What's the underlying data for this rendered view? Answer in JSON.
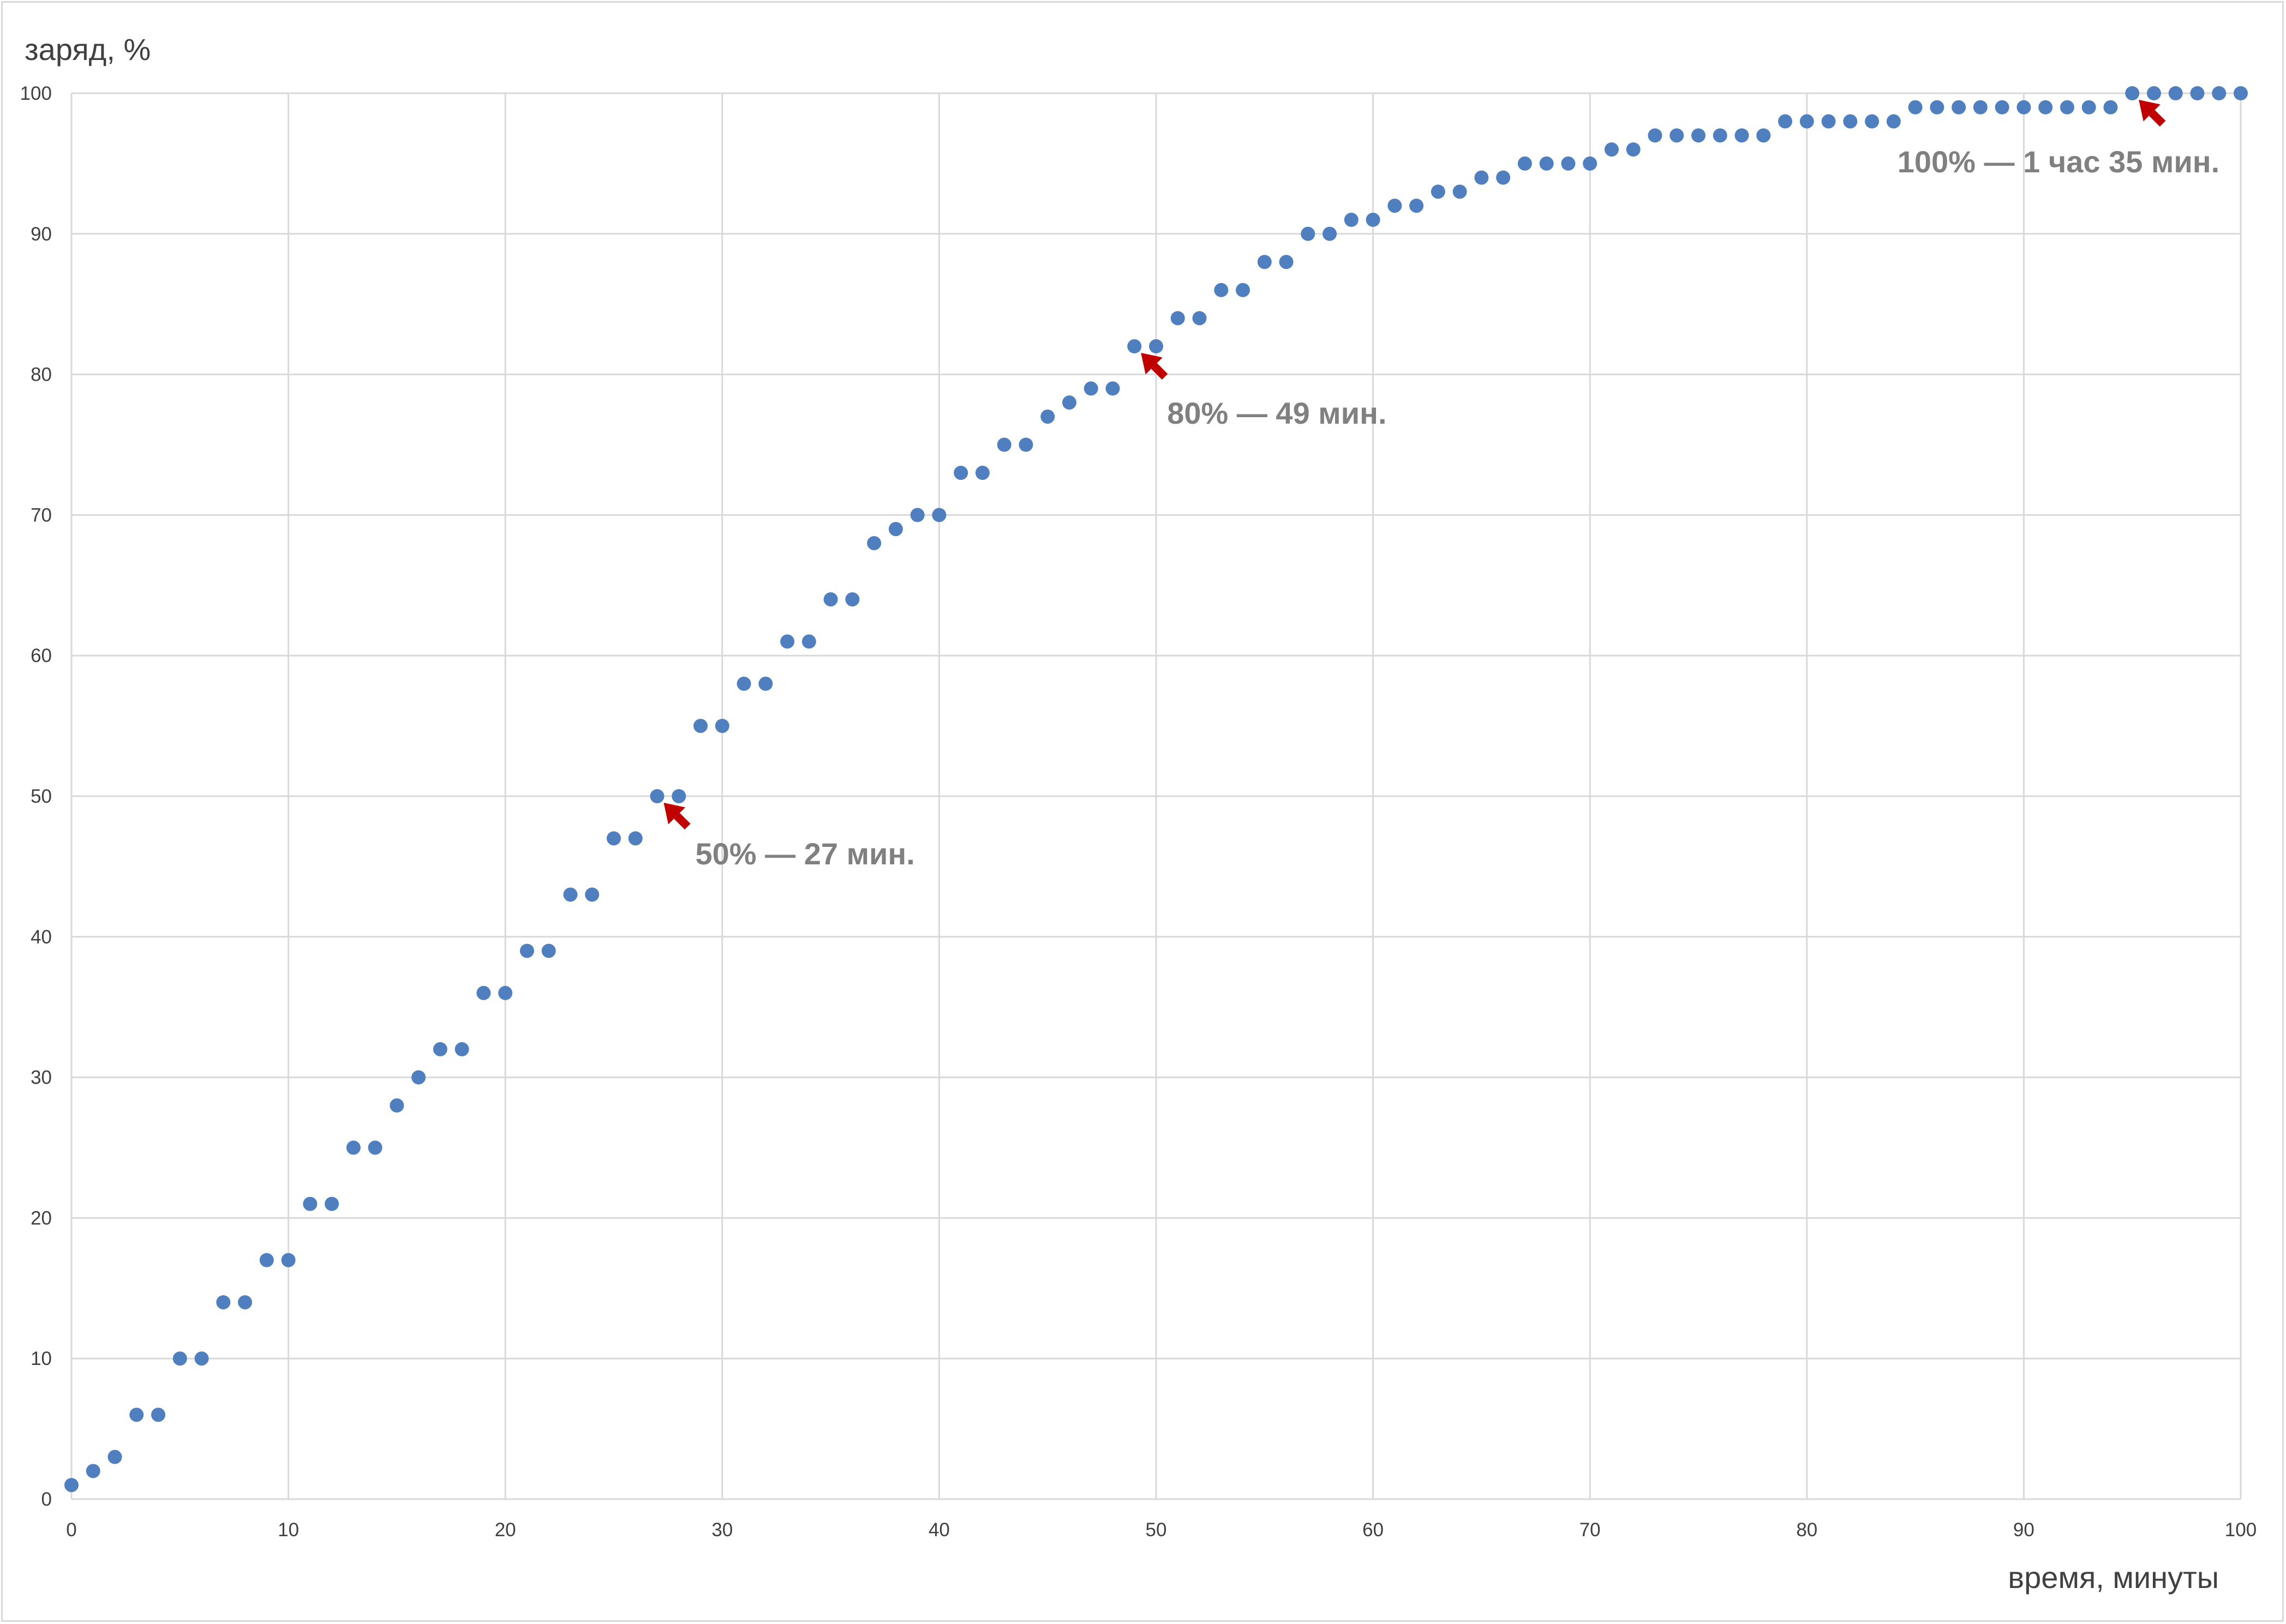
{
  "chart_data": {
    "type": "scatter",
    "xlabel": "время, минуты",
    "ylabel": "заряд, %",
    "xlim": [
      0,
      100
    ],
    "ylim": [
      0,
      100
    ],
    "x_ticks": [
      "0",
      "10",
      "20",
      "30",
      "40",
      "50",
      "60",
      "70",
      "80",
      "90",
      "100"
    ],
    "y_ticks": [
      "0",
      "10",
      "20",
      "30",
      "40",
      "50",
      "60",
      "70",
      "80",
      "90",
      "100"
    ],
    "grid": true,
    "legend": "none",
    "colors": {
      "marker": "#4f7fbf",
      "arrow": "#c00000",
      "annotation": "#808080",
      "grid": "#d9d9d9"
    },
    "series": [
      {
        "x": [
          0,
          1,
          2,
          3,
          4,
          5,
          6,
          7,
          8,
          9,
          10,
          11,
          12,
          13,
          14,
          15,
          16,
          17,
          18,
          19,
          20,
          21,
          22,
          23,
          24,
          25,
          26,
          27,
          28,
          29,
          30,
          31,
          32,
          33,
          34,
          35,
          36,
          37,
          38,
          39,
          40,
          41,
          42,
          43,
          44,
          45,
          46,
          47,
          48,
          49,
          50,
          51,
          52,
          53,
          54,
          55,
          56,
          57,
          58,
          59,
          60,
          61,
          62,
          63,
          64,
          65,
          66,
          67,
          68,
          69,
          70,
          71,
          72,
          73,
          74,
          75,
          76,
          77,
          78,
          79,
          80,
          81,
          82,
          83,
          84,
          85,
          86,
          87,
          88,
          89,
          90,
          91,
          92,
          93,
          94,
          95,
          96,
          97,
          98,
          99,
          100
        ],
        "y": [
          1,
          2,
          3,
          6,
          6,
          10,
          10,
          14,
          14,
          17,
          17,
          21,
          21,
          25,
          25,
          28,
          30,
          32,
          32,
          36,
          36,
          39,
          39,
          43,
          43,
          47,
          47,
          50,
          50,
          55,
          55,
          58,
          58,
          61,
          61,
          64,
          64,
          68,
          69,
          70,
          70,
          73,
          73,
          75,
          75,
          77,
          78,
          79,
          79,
          82,
          82,
          84,
          84,
          86,
          86,
          88,
          88,
          90,
          90,
          91,
          91,
          92,
          92,
          93,
          93,
          94,
          94,
          95,
          95,
          95,
          95,
          96,
          96,
          97,
          97,
          97,
          97,
          97,
          97,
          98,
          98,
          98,
          98,
          98,
          98,
          99,
          99,
          99,
          99,
          99,
          99,
          99,
          99,
          99,
          99,
          100,
          100,
          100,
          100,
          100,
          100
        ]
      }
    ],
    "annotations": [
      {
        "text": "50% — 27 мин.",
        "x": 27,
        "y": 50
      },
      {
        "text": "80% — 49 мин.",
        "x": 49,
        "y": 82
      },
      {
        "text": "100% — 1 час 35 мин.",
        "x": 95,
        "y": 100
      }
    ]
  }
}
